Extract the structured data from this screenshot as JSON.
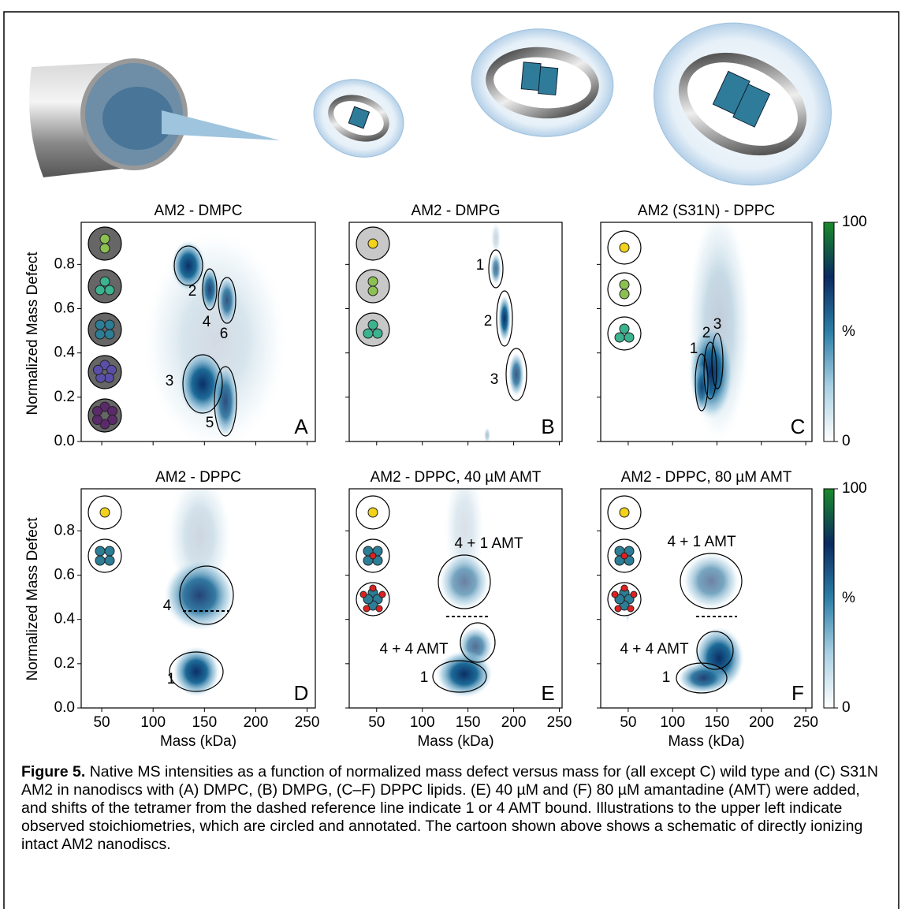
{
  "figure": {
    "panels": [
      {
        "title": "AM2 - DMPC",
        "letter": "A",
        "xlim": [
          30,
          258
        ],
        "annotations": [
          "2",
          "4",
          "6",
          "3",
          "5"
        ]
      },
      {
        "title": "AM2 - DMPG",
        "letter": "B",
        "xlim": [
          20,
          253
        ],
        "annotations": [
          "1",
          "2",
          "3"
        ]
      },
      {
        "title": "AM2 (S31N) - DPPC",
        "letter": "C",
        "xlim": [
          19,
          257
        ],
        "annotations": [
          "1",
          "2",
          "3"
        ]
      },
      {
        "title": "AM2 - DPPC",
        "letter": "D",
        "xlim": [
          30,
          258
        ],
        "annotations": [
          "4",
          "1"
        ]
      },
      {
        "title": "AM2 - DPPC, 40 µM AMT",
        "letter": "E",
        "xlim": [
          20,
          253
        ],
        "annotations": [
          "4 + 1 AMT",
          "4 + 4 AMT",
          "1"
        ]
      },
      {
        "title": "AM2 - DPPC, 80 µM AMT",
        "letter": "F",
        "xlim": [
          19,
          257
        ],
        "annotations": [
          "4 + 1 AMT",
          "4 + 4 AMT",
          "1"
        ]
      }
    ],
    "x_label": "Mass (kDa)",
    "y_label": "Normalized Mass Defect",
    "ylim": [
      0,
      0.99
    ],
    "xticks": [
      50,
      100,
      150,
      200,
      250
    ],
    "yticks": [
      {
        "value": 0,
        "label": "0.0"
      },
      {
        "value": 0.2,
        "label": "0.2"
      },
      {
        "value": 0.4,
        "label": "0.4"
      },
      {
        "value": 0.6,
        "label": "0.6"
      },
      {
        "value": 0.8,
        "label": "0.8"
      }
    ],
    "colorbar_lim": [
      0,
      100
    ],
    "colorbar_ticks": [
      0,
      100
    ],
    "colorbar_label": "%",
    "caption": {
      "label": "Figure 5.",
      "text": " Native MS intensities as a function of normalized mass defect versus mass for (all except C) wild type and (C) S31N AM2 in nanodiscs with (A) DMPC, (B) DMPG, (C–F) DPPC lipids. (E) 40 µM and (F) 80 µM amantadine (AMT) were added, and shifts of the tetramer from the dashed reference line indicate 1 or 4 AMT bound. Illustrations to the upper left indicate observed stoichiometries, which are circled and annotated. The cartoon shown above shows a schematic of directly ionizing intact AM2 nanodiscs."
    }
  }
}
